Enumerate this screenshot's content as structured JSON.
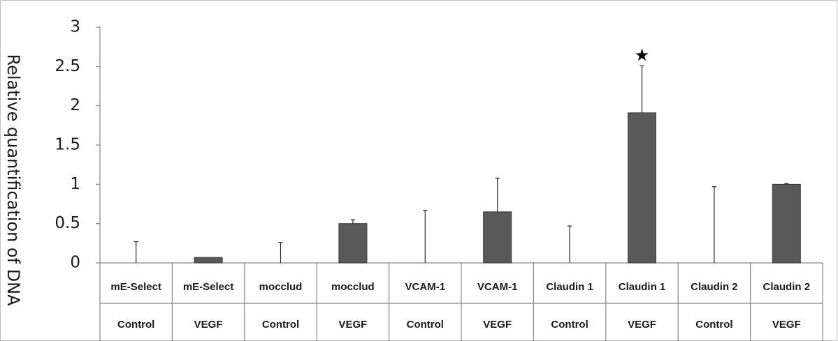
{
  "chart_data": {
    "type": "bar",
    "title": "",
    "xlabel": "",
    "ylabel": "Relative quantification of DNA",
    "ylim": [
      0,
      3
    ],
    "yticks": [
      "0",
      "0.5",
      "1",
      "1.5",
      "2",
      "2.5",
      "3"
    ],
    "ytick_values": [
      0,
      0.5,
      1,
      1.5,
      2,
      2.5,
      3
    ],
    "grid": false,
    "legend": "none",
    "bar_color": "#595959",
    "categories": [
      {
        "gene": "mE-Select",
        "condition": "Control"
      },
      {
        "gene": "mE-Select",
        "condition": "VEGF"
      },
      {
        "gene": "mocclud",
        "condition": "Control"
      },
      {
        "gene": "mocclud",
        "condition": "VEGF"
      },
      {
        "gene": "VCAM-1",
        "condition": "Control"
      },
      {
        "gene": "VCAM-1",
        "condition": "VEGF"
      },
      {
        "gene": "Claudin 1",
        "condition": "Control"
      },
      {
        "gene": "Claudin 1",
        "condition": "VEGF"
      },
      {
        "gene": "Claudin 2",
        "condition": "Control"
      },
      {
        "gene": "Claudin 2",
        "condition": "VEGF"
      }
    ],
    "values": [
      0.0,
      0.07,
      0.0,
      0.5,
      0.0,
      0.65,
      0.0,
      1.91,
      0.0,
      1.0
    ],
    "error_upper": [
      0.27,
      0.0,
      0.26,
      0.05,
      0.67,
      0.43,
      0.47,
      0.6,
      0.97,
      0.01
    ],
    "annotations": [
      {
        "category_index": 7,
        "text": "★"
      }
    ]
  }
}
